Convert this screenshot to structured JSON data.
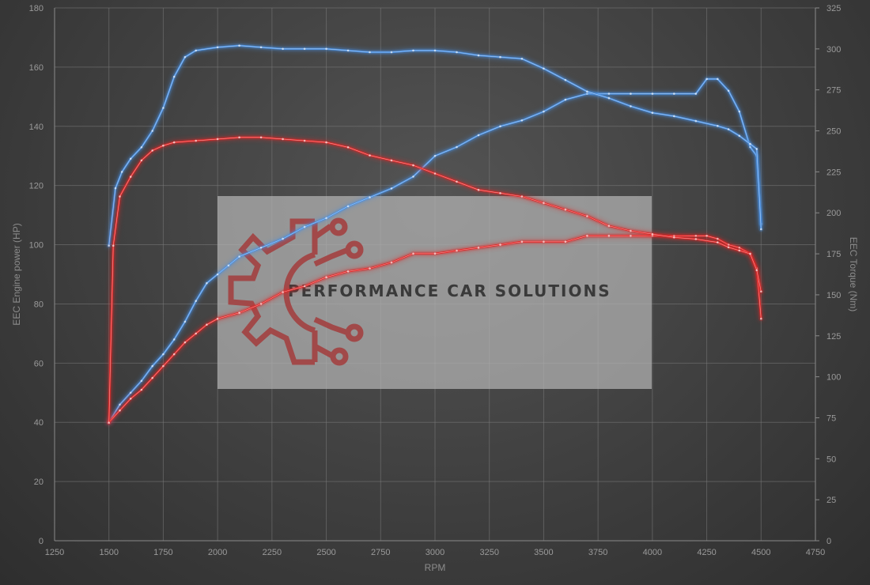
{
  "chart_data": {
    "type": "line",
    "xlabel": "RPM",
    "ylabel_left": "EEC Engine power (HP)",
    "ylabel_right": "EEC Torque (Nm)",
    "xlim": [
      1250,
      4750
    ],
    "ylim_left": [
      0,
      180
    ],
    "ylim_right": [
      0,
      325
    ],
    "x_ticks": [
      1250,
      1500,
      1750,
      2000,
      2250,
      2500,
      2750,
      3000,
      3250,
      3500,
      3750,
      4000,
      4250,
      4500,
      4750
    ],
    "y_ticks_left": [
      0,
      20,
      40,
      60,
      80,
      100,
      120,
      140,
      160,
      180
    ],
    "y_ticks_right": [
      0,
      25,
      50,
      75,
      100,
      125,
      150,
      175,
      200,
      225,
      250,
      275,
      300,
      325
    ],
    "grid": true,
    "series": [
      {
        "axis": "left",
        "color": "#4a8fe0",
        "points": [
          [
            1500,
            40
          ],
          [
            1550,
            46
          ],
          [
            1600,
            50
          ],
          [
            1650,
            54
          ],
          [
            1700,
            59
          ],
          [
            1750,
            63
          ],
          [
            1800,
            68
          ],
          [
            1850,
            74
          ],
          [
            1900,
            81
          ],
          [
            1950,
            87
          ],
          [
            2000,
            90
          ],
          [
            2050,
            93
          ],
          [
            2100,
            96
          ],
          [
            2200,
            99
          ],
          [
            2300,
            102
          ],
          [
            2400,
            106
          ],
          [
            2500,
            109
          ],
          [
            2600,
            113
          ],
          [
            2700,
            116
          ],
          [
            2800,
            119
          ],
          [
            2900,
            123
          ],
          [
            3000,
            130
          ],
          [
            3100,
            133
          ],
          [
            3200,
            137
          ],
          [
            3300,
            140
          ],
          [
            3400,
            142
          ],
          [
            3500,
            145
          ],
          [
            3600,
            149
          ],
          [
            3700,
            151
          ],
          [
            3800,
            151
          ],
          [
            3900,
            151
          ],
          [
            4000,
            151
          ],
          [
            4100,
            151
          ],
          [
            4200,
            151
          ],
          [
            4250,
            156
          ],
          [
            4300,
            156
          ],
          [
            4350,
            152
          ],
          [
            4400,
            145
          ],
          [
            4450,
            133
          ],
          [
            4480,
            130
          ],
          [
            4500,
            107
          ]
        ]
      },
      {
        "axis": "right",
        "color": "#4a8fe0",
        "points": [
          [
            1500,
            180
          ],
          [
            1530,
            215
          ],
          [
            1560,
            225
          ],
          [
            1600,
            233
          ],
          [
            1650,
            240
          ],
          [
            1700,
            250
          ],
          [
            1750,
            264
          ],
          [
            1800,
            283
          ],
          [
            1850,
            295
          ],
          [
            1900,
            299
          ],
          [
            2000,
            301
          ],
          [
            2100,
            302
          ],
          [
            2200,
            301
          ],
          [
            2300,
            300
          ],
          [
            2400,
            300
          ],
          [
            2500,
            300
          ],
          [
            2600,
            299
          ],
          [
            2700,
            298
          ],
          [
            2800,
            298
          ],
          [
            2900,
            299
          ],
          [
            3000,
            299
          ],
          [
            3100,
            298
          ],
          [
            3200,
            296
          ],
          [
            3300,
            295
          ],
          [
            3400,
            294
          ],
          [
            3500,
            288
          ],
          [
            3600,
            281
          ],
          [
            3700,
            274
          ],
          [
            3800,
            270
          ],
          [
            3900,
            265
          ],
          [
            4000,
            261
          ],
          [
            4100,
            259
          ],
          [
            4200,
            256
          ],
          [
            4300,
            253
          ],
          [
            4350,
            251
          ],
          [
            4400,
            247
          ],
          [
            4450,
            242
          ],
          [
            4480,
            239
          ],
          [
            4500,
            190
          ]
        ]
      },
      {
        "axis": "left",
        "color": "#e02828",
        "points": [
          [
            1500,
            40
          ],
          [
            1550,
            44
          ],
          [
            1600,
            48
          ],
          [
            1650,
            51
          ],
          [
            1700,
            55
          ],
          [
            1750,
            59
          ],
          [
            1800,
            63
          ],
          [
            1850,
            67
          ],
          [
            1900,
            70
          ],
          [
            1950,
            73
          ],
          [
            2000,
            75
          ],
          [
            2100,
            77
          ],
          [
            2200,
            80
          ],
          [
            2300,
            84
          ],
          [
            2400,
            86
          ],
          [
            2500,
            89
          ],
          [
            2600,
            91
          ],
          [
            2700,
            92
          ],
          [
            2800,
            94
          ],
          [
            2900,
            97
          ],
          [
            3000,
            97
          ],
          [
            3100,
            98
          ],
          [
            3200,
            99
          ],
          [
            3300,
            100
          ],
          [
            3400,
            101
          ],
          [
            3500,
            101
          ],
          [
            3600,
            101
          ],
          [
            3700,
            103
          ],
          [
            3800,
            103
          ],
          [
            3900,
            103
          ],
          [
            4000,
            103
          ],
          [
            4100,
            103
          ],
          [
            4200,
            103
          ],
          [
            4250,
            103
          ],
          [
            4300,
            102
          ],
          [
            4350,
            100
          ],
          [
            4400,
            99
          ],
          [
            4450,
            97
          ],
          [
            4480,
            92
          ],
          [
            4500,
            75
          ]
        ]
      },
      {
        "axis": "right",
        "color": "#e02828",
        "points": [
          [
            1500,
            72
          ],
          [
            1520,
            180
          ],
          [
            1550,
            210
          ],
          [
            1600,
            222
          ],
          [
            1650,
            232
          ],
          [
            1700,
            238
          ],
          [
            1750,
            241
          ],
          [
            1800,
            243
          ],
          [
            1900,
            244
          ],
          [
            2000,
            245
          ],
          [
            2100,
            246
          ],
          [
            2200,
            246
          ],
          [
            2300,
            245
          ],
          [
            2400,
            244
          ],
          [
            2500,
            243
          ],
          [
            2600,
            240
          ],
          [
            2700,
            235
          ],
          [
            2800,
            232
          ],
          [
            2900,
            229
          ],
          [
            3000,
            224
          ],
          [
            3100,
            219
          ],
          [
            3200,
            214
          ],
          [
            3300,
            212
          ],
          [
            3400,
            210
          ],
          [
            3500,
            206
          ],
          [
            3600,
            202
          ],
          [
            3700,
            198
          ],
          [
            3800,
            192
          ],
          [
            3900,
            189
          ],
          [
            4000,
            187
          ],
          [
            4100,
            185
          ],
          [
            4200,
            184
          ],
          [
            4300,
            182
          ],
          [
            4350,
            179
          ],
          [
            4400,
            177
          ],
          [
            4450,
            175
          ],
          [
            4480,
            165
          ],
          [
            4500,
            152
          ]
        ]
      }
    ]
  },
  "watermark": {
    "text": "PERFORMANCE CAR SOLUTIONS",
    "logo_icon": "gear-circuit-icon",
    "logo_color": "#a43c3c"
  }
}
